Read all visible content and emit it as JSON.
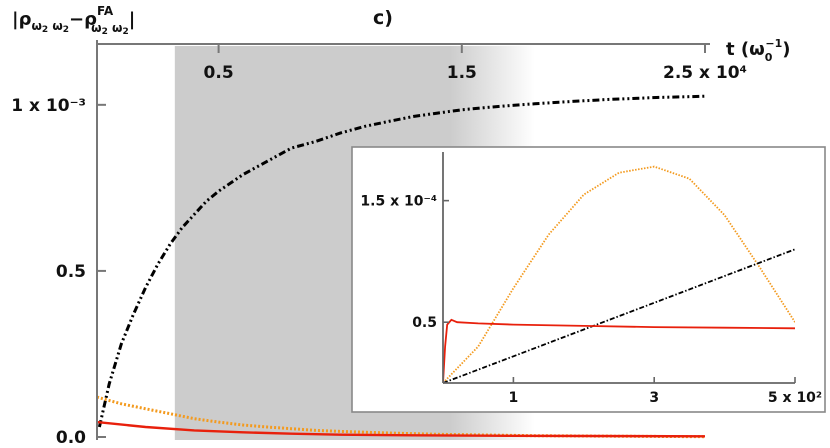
{
  "chart_data": {
    "type": "line",
    "panel_label": "c)",
    "ylabel": "|ρω2 ω2−ρFAω2 ω2|",
    "ylabel_parts": {
      "open": "|ρ",
      "sub1": "ω",
      "sub1b": "2",
      "sub1c": " ω",
      "sub1d": "2",
      "minus": "−ρ",
      "sup": "FA",
      "sub2": "ω",
      "sub2b": "2",
      "sub2c": " ω",
      "sub2d": "2",
      "close": "|"
    },
    "xlabel": "t (ω0−1)",
    "xlabel_parts": {
      "main": "t (ω",
      "sub": "0",
      "sup": "−1",
      "close": ")"
    },
    "xlim": [
      0,
      2.5
    ],
    "ylim": [
      0,
      1.15
    ],
    "x_ticks": [
      {
        "value": 0.5,
        "label": "0.5"
      },
      {
        "value": 1.5,
        "label": "1.5"
      },
      {
        "value": 2.5,
        "label": "2.5 x 10⁴"
      }
    ],
    "y_ticks": [
      {
        "value": 0.0,
        "label": "0.0"
      },
      {
        "value": 0.5,
        "label": "0.5"
      },
      {
        "value": 1.0,
        "label": "1 x 10⁻³"
      }
    ],
    "shaded_region": {
      "x_start": 0.32,
      "x_end": 1.45,
      "fade_end": 1.8,
      "color": "#cccccc"
    },
    "series": [
      {
        "color": "#000000",
        "style": "dash-dot",
        "x": [
          0.01,
          0.05,
          0.1,
          0.15,
          0.2,
          0.25,
          0.3,
          0.35,
          0.4,
          0.45,
          0.5,
          0.6,
          0.7,
          0.8,
          0.9,
          1.0,
          1.1,
          1.2,
          1.3,
          1.4,
          1.5,
          1.6,
          1.7,
          1.8,
          1.9,
          2.0,
          2.1,
          2.2,
          2.3,
          2.4,
          2.5
        ],
        "y": [
          0.03,
          0.16,
          0.28,
          0.37,
          0.45,
          0.52,
          0.58,
          0.63,
          0.67,
          0.71,
          0.74,
          0.79,
          0.83,
          0.87,
          0.89,
          0.915,
          0.935,
          0.95,
          0.965,
          0.975,
          0.985,
          0.992,
          0.998,
          1.003,
          1.008,
          1.012,
          1.016,
          1.019,
          1.022,
          1.024,
          1.026
        ]
      },
      {
        "color": "#f39a1e",
        "style": "dotted",
        "x": [
          0.0,
          0.1,
          0.2,
          0.3,
          0.4,
          0.5,
          0.6,
          0.7,
          0.8,
          0.9,
          1.0,
          1.2,
          1.4,
          1.6,
          1.8,
          2.0,
          2.2,
          2.5
        ],
        "y": [
          0.12,
          0.1,
          0.085,
          0.07,
          0.055,
          0.045,
          0.036,
          0.03,
          0.025,
          0.02,
          0.017,
          0.012,
          0.008,
          0.006,
          0.004,
          0.003,
          0.002,
          0.001
        ]
      },
      {
        "color": "#e8200c",
        "style": "solid",
        "x": [
          0.0,
          0.2,
          0.4,
          0.6,
          0.8,
          1.0,
          1.3,
          1.6,
          2.0,
          2.5
        ],
        "y": [
          0.045,
          0.03,
          0.02,
          0.014,
          0.01,
          0.007,
          0.005,
          0.004,
          0.003,
          0.002
        ]
      }
    ],
    "inset": {
      "xlim": [
        0,
        5
      ],
      "ylim": [
        0,
        1.9
      ],
      "x_ticks": [
        {
          "value": 1,
          "label": "1"
        },
        {
          "value": 3,
          "label": "3"
        },
        {
          "value": 5,
          "label": "5 x 10²"
        }
      ],
      "y_ticks": [
        {
          "value": 0.5,
          "label": "0.5"
        },
        {
          "value": 1.5,
          "label": "1.5 x 10⁻⁴"
        }
      ],
      "series": [
        {
          "color": "#f39a1e",
          "style": "dotted",
          "x": [
            0.0,
            0.5,
            1.0,
            1.5,
            2.0,
            2.5,
            3.0,
            3.5,
            4.0,
            4.5,
            5.0
          ],
          "y": [
            0.0,
            0.3,
            0.78,
            1.22,
            1.55,
            1.73,
            1.78,
            1.68,
            1.38,
            0.95,
            0.5
          ]
        },
        {
          "color": "#000000",
          "style": "dash-dot",
          "x": [
            0.0,
            1.0,
            2.0,
            3.0,
            4.0,
            5.0
          ],
          "y": [
            0.0,
            0.22,
            0.44,
            0.66,
            0.88,
            1.1
          ]
        },
        {
          "color": "#e8200c",
          "style": "solid",
          "x": [
            0.0,
            0.03,
            0.06,
            0.12,
            0.2,
            0.5,
            1.0,
            2.0,
            3.0,
            4.0,
            5.0
          ],
          "y": [
            0.0,
            0.3,
            0.48,
            0.52,
            0.5,
            0.49,
            0.48,
            0.47,
            0.46,
            0.455,
            0.45
          ]
        }
      ]
    }
  }
}
